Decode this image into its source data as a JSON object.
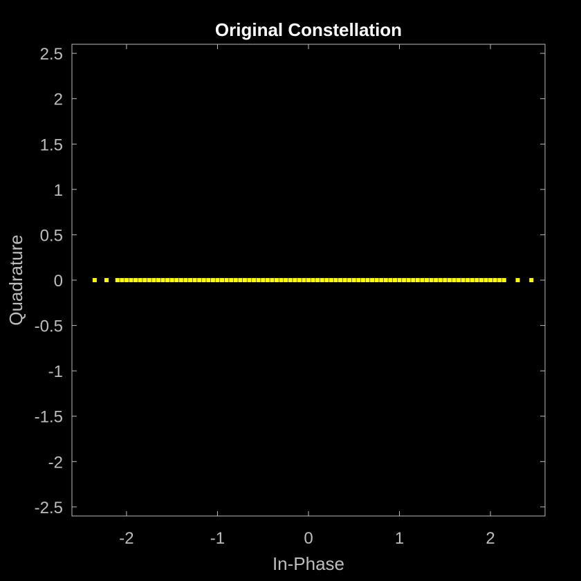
{
  "chart_data": {
    "type": "scatter",
    "title": "Original Constellation",
    "xlabel": "In-Phase",
    "ylabel": "Quadrature",
    "xlim": [
      -2.6,
      2.6
    ],
    "ylim": [
      -2.6,
      2.6
    ],
    "xticks": [
      -2,
      -1,
      0,
      1,
      2
    ],
    "xtick_labels": [
      "-2",
      "-1",
      "0",
      "1",
      "2"
    ],
    "yticks": [
      2.5,
      2,
      1.5,
      1,
      0.5,
      0,
      -0.5,
      -1,
      -1.5,
      -2,
      -2.5
    ],
    "ytick_labels": [
      "2.5",
      "2",
      "1.5",
      "1",
      "0.5",
      "0",
      "-0.5",
      "-1",
      "-1.5",
      "-2",
      "-2.5"
    ],
    "grid": false,
    "background": "#000000",
    "axes_color": "#bdbdbd",
    "series": [
      {
        "color": "#ffff00",
        "marker": ".",
        "points": [
          {
            "x": -2.35,
            "y": 0
          },
          {
            "x": -2.22,
            "y": 0
          },
          {
            "x": -2.1,
            "y": 0
          },
          {
            "x": -2.05,
            "y": 0
          },
          {
            "x": -2.0,
            "y": 0
          },
          {
            "x": -1.95,
            "y": 0
          },
          {
            "x": -1.9,
            "y": 0
          },
          {
            "x": -1.85,
            "y": 0
          },
          {
            "x": -1.8,
            "y": 0
          },
          {
            "x": -1.75,
            "y": 0
          },
          {
            "x": -1.7,
            "y": 0
          },
          {
            "x": -1.65,
            "y": 0
          },
          {
            "x": -1.6,
            "y": 0
          },
          {
            "x": -1.55,
            "y": 0
          },
          {
            "x": -1.5,
            "y": 0
          },
          {
            "x": -1.45,
            "y": 0
          },
          {
            "x": -1.4,
            "y": 0
          },
          {
            "x": -1.35,
            "y": 0
          },
          {
            "x": -1.3,
            "y": 0
          },
          {
            "x": -1.25,
            "y": 0
          },
          {
            "x": -1.2,
            "y": 0
          },
          {
            "x": -1.15,
            "y": 0
          },
          {
            "x": -1.1,
            "y": 0
          },
          {
            "x": -1.05,
            "y": 0
          },
          {
            "x": -1.0,
            "y": 0
          },
          {
            "x": -0.95,
            "y": 0
          },
          {
            "x": -0.9,
            "y": 0
          },
          {
            "x": -0.85,
            "y": 0
          },
          {
            "x": -0.8,
            "y": 0
          },
          {
            "x": -0.75,
            "y": 0
          },
          {
            "x": -0.7,
            "y": 0
          },
          {
            "x": -0.65,
            "y": 0
          },
          {
            "x": -0.6,
            "y": 0
          },
          {
            "x": -0.55,
            "y": 0
          },
          {
            "x": -0.5,
            "y": 0
          },
          {
            "x": -0.45,
            "y": 0
          },
          {
            "x": -0.4,
            "y": 0
          },
          {
            "x": -0.35,
            "y": 0
          },
          {
            "x": -0.3,
            "y": 0
          },
          {
            "x": -0.25,
            "y": 0
          },
          {
            "x": -0.2,
            "y": 0
          },
          {
            "x": -0.15,
            "y": 0
          },
          {
            "x": -0.1,
            "y": 0
          },
          {
            "x": -0.05,
            "y": 0
          },
          {
            "x": 0.0,
            "y": 0
          },
          {
            "x": 0.05,
            "y": 0
          },
          {
            "x": 0.1,
            "y": 0
          },
          {
            "x": 0.15,
            "y": 0
          },
          {
            "x": 0.2,
            "y": 0
          },
          {
            "x": 0.25,
            "y": 0
          },
          {
            "x": 0.3,
            "y": 0
          },
          {
            "x": 0.35,
            "y": 0
          },
          {
            "x": 0.4,
            "y": 0
          },
          {
            "x": 0.45,
            "y": 0
          },
          {
            "x": 0.5,
            "y": 0
          },
          {
            "x": 0.55,
            "y": 0
          },
          {
            "x": 0.6,
            "y": 0
          },
          {
            "x": 0.65,
            "y": 0
          },
          {
            "x": 0.7,
            "y": 0
          },
          {
            "x": 0.75,
            "y": 0
          },
          {
            "x": 0.8,
            "y": 0
          },
          {
            "x": 0.85,
            "y": 0
          },
          {
            "x": 0.9,
            "y": 0
          },
          {
            "x": 0.95,
            "y": 0
          },
          {
            "x": 1.0,
            "y": 0
          },
          {
            "x": 1.05,
            "y": 0
          },
          {
            "x": 1.1,
            "y": 0
          },
          {
            "x": 1.15,
            "y": 0
          },
          {
            "x": 1.2,
            "y": 0
          },
          {
            "x": 1.25,
            "y": 0
          },
          {
            "x": 1.3,
            "y": 0
          },
          {
            "x": 1.35,
            "y": 0
          },
          {
            "x": 1.4,
            "y": 0
          },
          {
            "x": 1.45,
            "y": 0
          },
          {
            "x": 1.5,
            "y": 0
          },
          {
            "x": 1.55,
            "y": 0
          },
          {
            "x": 1.6,
            "y": 0
          },
          {
            "x": 1.65,
            "y": 0
          },
          {
            "x": 1.7,
            "y": 0
          },
          {
            "x": 1.75,
            "y": 0
          },
          {
            "x": 1.8,
            "y": 0
          },
          {
            "x": 1.85,
            "y": 0
          },
          {
            "x": 1.9,
            "y": 0
          },
          {
            "x": 1.95,
            "y": 0
          },
          {
            "x": 2.0,
            "y": 0
          },
          {
            "x": 2.05,
            "y": 0
          },
          {
            "x": 2.1,
            "y": 0
          },
          {
            "x": 2.15,
            "y": 0
          },
          {
            "x": 2.3,
            "y": 0
          },
          {
            "x": 2.45,
            "y": 0
          }
        ]
      }
    ]
  }
}
